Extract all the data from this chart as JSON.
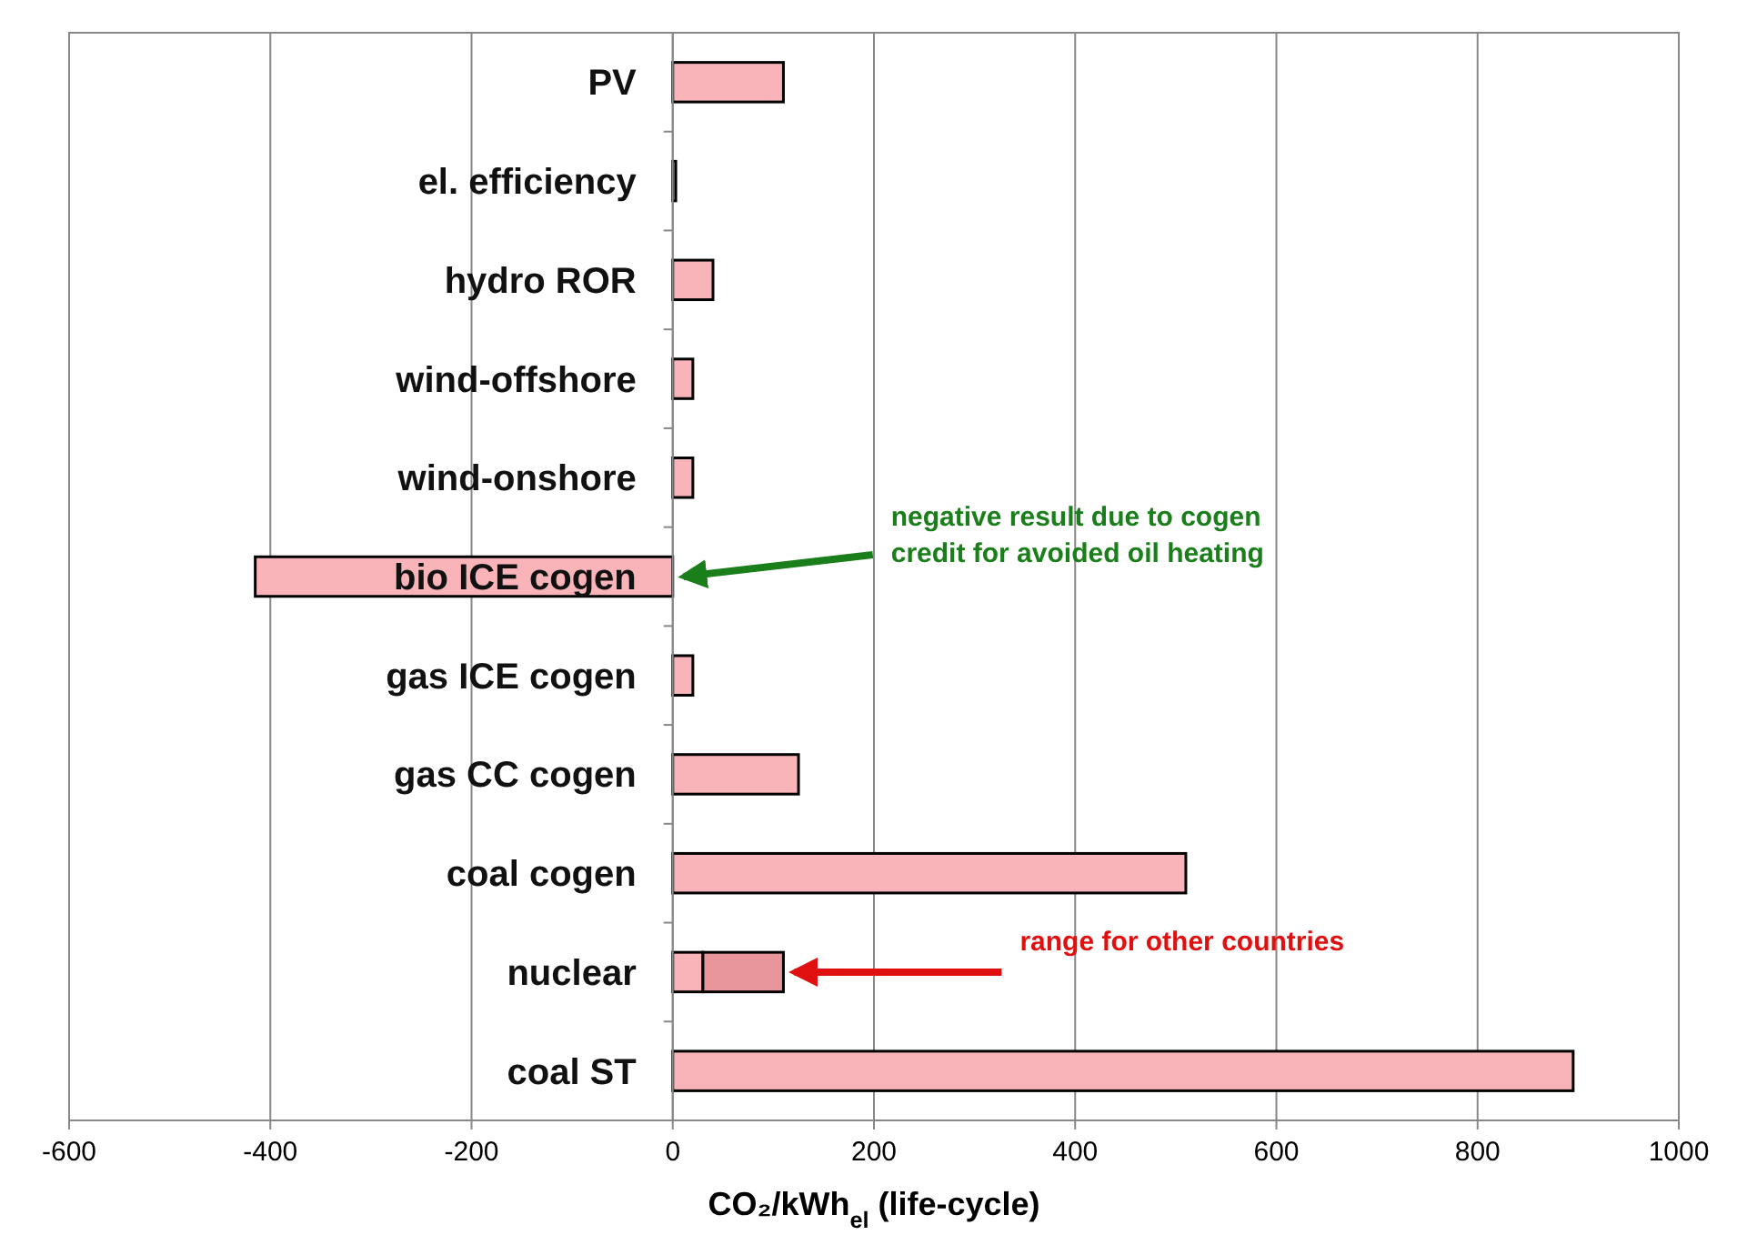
{
  "chart_data": {
    "type": "bar",
    "orientation": "horizontal",
    "stacked": true,
    "categories": [
      "PV",
      "el. efficiency",
      "hydro ROR",
      "wind-offshore",
      "wind-onshore",
      "bio ICE cogen",
      "gas ICE cogen",
      "gas CC cogen",
      "coal cogen",
      "nuclear",
      "coal ST"
    ],
    "series": [
      {
        "color": "#f8b4b8",
        "values": [
          110,
          3,
          40,
          20,
          20,
          -415,
          20,
          125,
          510,
          30,
          895
        ]
      },
      {
        "color": "#e8959b",
        "values": [
          null,
          null,
          null,
          null,
          null,
          null,
          null,
          null,
          null,
          80,
          null
        ]
      }
    ],
    "xlabel": "CO₂/kWh$_{el}$ (life-cycle)",
    "xlim": [
      -600,
      1000
    ],
    "xticks": [
      -600,
      -400,
      -200,
      0,
      200,
      400,
      600,
      800,
      1000
    ],
    "grid": "x",
    "annotations": [
      {
        "text": "negative result due to cogen\ncredit for avoided oil heating",
        "x": 0,
        "y": "bio ICE cogen"
      },
      {
        "text": "range for other countries",
        "x": 110,
        "y": "nuclear"
      }
    ]
  }
}
